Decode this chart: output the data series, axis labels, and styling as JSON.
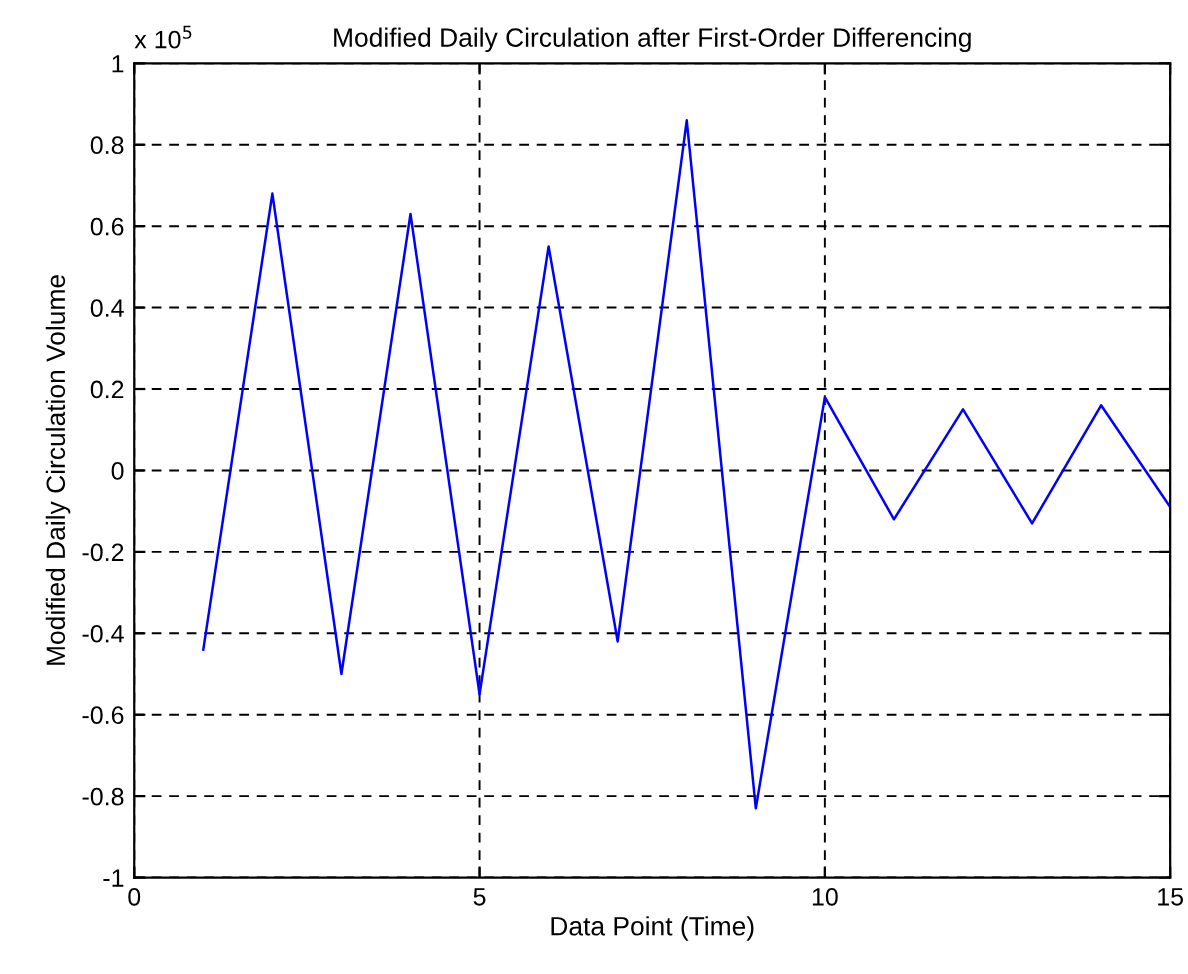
{
  "chart_data": {
    "type": "line",
    "title": "Modified Daily Circulation after First-Order Differencing",
    "xlabel": "Data Point (Time)",
    "ylabel": "Modified Daily Circulation Volume",
    "annotations": [
      "x 10$^{5}$"
    ],
    "x": [
      1,
      2,
      3,
      4,
      5,
      6,
      7,
      8,
      9,
      10,
      11,
      12,
      13,
      14,
      15
    ],
    "series": [
      {
        "color": "#0000ff",
        "values": [
          -0.44,
          0.68,
          -0.5,
          0.63,
          -0.55,
          0.55,
          -0.42,
          0.86,
          -0.83,
          0.18,
          -0.12,
          0.15,
          -0.13,
          0.16,
          -0.09
        ]
      }
    ],
    "xlim": [
      0,
      15
    ],
    "xticks": [
      0,
      5,
      10,
      15
    ],
    "ylim": [
      -1,
      1
    ],
    "yticks": [
      -1,
      -0.8,
      -0.6,
      -0.4,
      -0.2,
      0,
      0.2,
      0.4,
      0.6,
      0.8,
      1
    ],
    "grid": true,
    "legend": false,
    "marker": "none",
    "line_style": "solid"
  }
}
